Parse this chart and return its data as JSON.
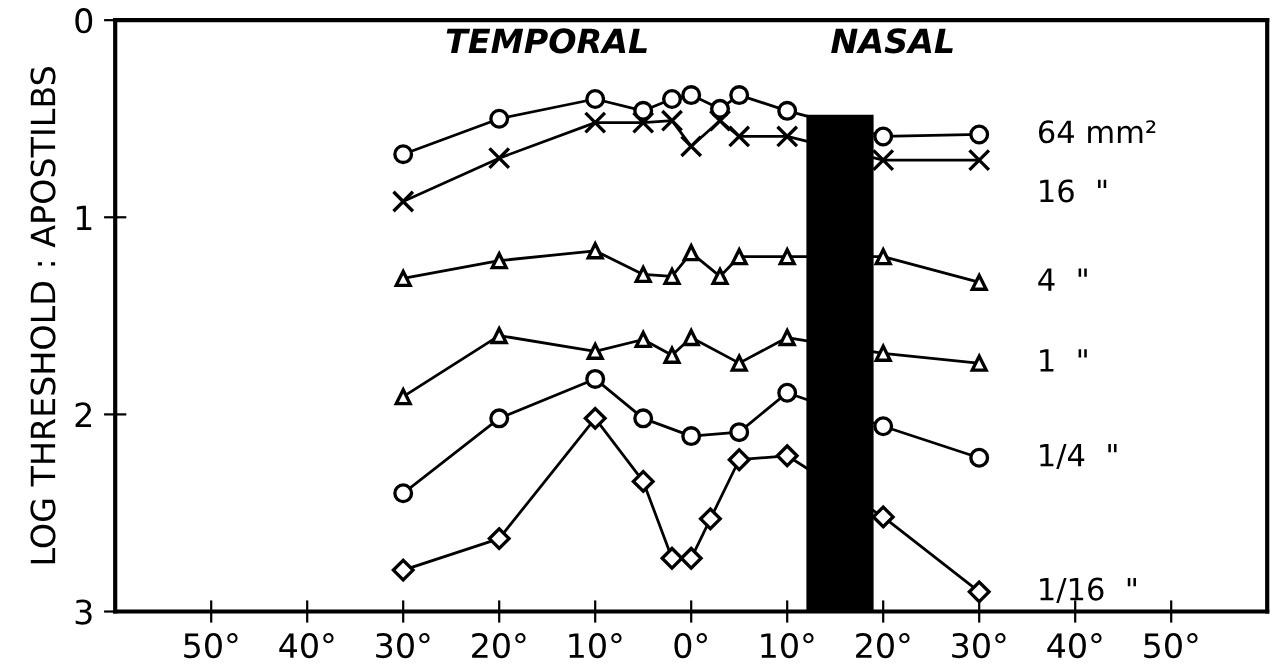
{
  "chart_data": {
    "type": "line",
    "ylabel": "LOG THRESHOLD : APOSTILBS",
    "annotations": [
      "TEMPORAL",
      "NASAL"
    ],
    "xlim": [
      -60,
      60
    ],
    "ylim": [
      3,
      0
    ],
    "yticks": [
      0,
      1,
      2,
      3
    ],
    "xticks": [
      {
        "value": -50,
        "label": "50°"
      },
      {
        "value": -40,
        "label": "40°"
      },
      {
        "value": -30,
        "label": "30°"
      },
      {
        "value": -20,
        "label": "20°"
      },
      {
        "value": -10,
        "label": "10°"
      },
      {
        "value": 0,
        "label": "0°"
      },
      {
        "value": 10,
        "label": "10°"
      },
      {
        "value": 20,
        "label": "20°"
      },
      {
        "value": 30,
        "label": "30°"
      },
      {
        "value": 40,
        "label": "40°"
      },
      {
        "value": 50,
        "label": "50°"
      }
    ],
    "grid": false,
    "legend": false,
    "line_style": "solid",
    "series": [
      {
        "type": "bar",
        "x": [
          15.5
        ],
        "base": [
          3
        ],
        "values": [
          -2.52
        ],
        "color": "#000000"
      },
      {
        "name": "64 mm²",
        "color": "#000000",
        "marker": "circle",
        "x": [
          -30,
          -20,
          -10,
          -5,
          -2,
          0,
          3,
          5,
          10,
          20,
          30
        ],
        "values": [
          0.68,
          0.5,
          0.4,
          0.46,
          0.4,
          0.38,
          0.45,
          0.38,
          0.46,
          0.59,
          0.58
        ]
      },
      {
        "name": "16  \"",
        "color": "#000000",
        "marker": "cross",
        "x": [
          -30,
          -20,
          -10,
          -5,
          -2,
          0,
          3,
          5,
          10,
          20,
          30
        ],
        "values": [
          0.92,
          0.7,
          0.52,
          0.52,
          0.51,
          0.64,
          0.51,
          0.59,
          0.59,
          0.71,
          0.71
        ]
      },
      {
        "name": "4  \"",
        "color": "#000000",
        "marker": "triangle",
        "x": [
          -30,
          -20,
          -10,
          -5,
          -2,
          0,
          3,
          5,
          10,
          20,
          30
        ],
        "values": [
          1.31,
          1.22,
          1.17,
          1.29,
          1.3,
          1.18,
          1.3,
          1.2,
          1.2,
          1.2,
          1.33
        ]
      },
      {
        "name": "1  \"",
        "color": "#000000",
        "marker": "triangle",
        "x": [
          -30,
          -20,
          -10,
          -5,
          -2,
          0,
          5,
          10,
          20,
          30
        ],
        "values": [
          1.91,
          1.6,
          1.68,
          1.62,
          1.7,
          1.61,
          1.74,
          1.61,
          1.69,
          1.74
        ]
      },
      {
        "name": "1/4  \"",
        "color": "#000000",
        "marker": "circle",
        "x": [
          -30,
          -20,
          -10,
          -5,
          0,
          5,
          10,
          20,
          30
        ],
        "values": [
          2.4,
          2.02,
          1.82,
          2.02,
          2.11,
          2.09,
          1.89,
          2.06,
          2.22
        ]
      },
      {
        "name": "1/16  \"",
        "color": "#000000",
        "marker": "diamond",
        "x": [
          -30,
          -20,
          -10,
          -5,
          -2,
          0,
          2,
          5,
          10,
          20,
          30
        ],
        "values": [
          2.79,
          2.63,
          2.02,
          2.34,
          2.73,
          2.73,
          2.53,
          2.23,
          2.21,
          2.52,
          2.9
        ]
      }
    ]
  }
}
